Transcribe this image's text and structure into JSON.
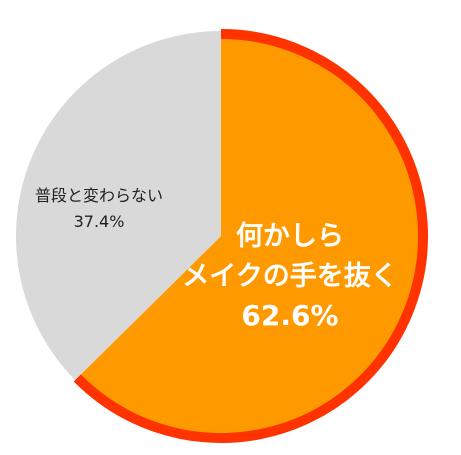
{
  "chart_data": {
    "type": "pie",
    "title": "",
    "slices": [
      {
        "label_lines": [
          "何かしら",
          "メイクの手を抜く"
        ],
        "value_text": "62.6%",
        "value": 62.6,
        "color": "#ff9900",
        "outline_color": "#ff3300",
        "emphasized": true
      },
      {
        "label_lines": [
          "普段と変わらない"
        ],
        "value_text": "37.4%",
        "value": 37.4,
        "color": "#d9d9d9",
        "emphasized": false
      }
    ],
    "start": "12 o'clock",
    "direction": "clockwise",
    "legend": "none",
    "label_placement": "inside slices"
  }
}
